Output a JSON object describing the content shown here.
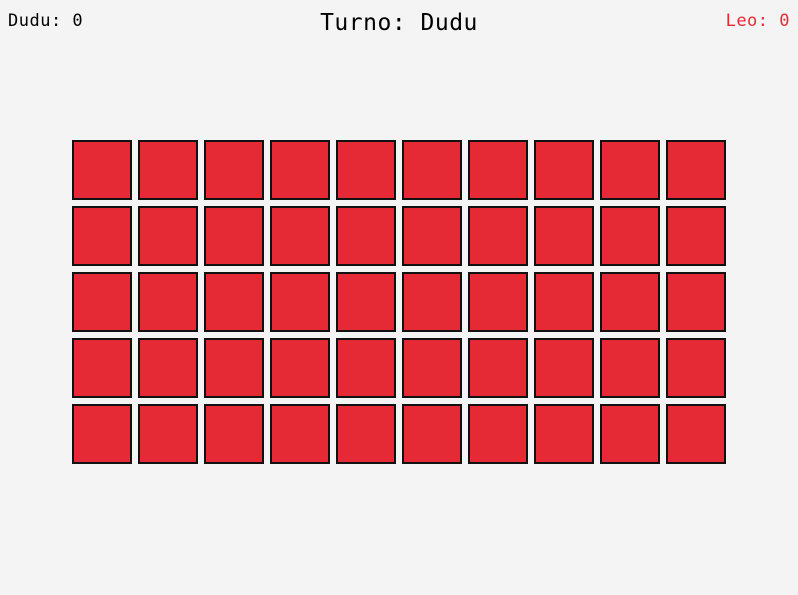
{
  "players": {
    "left": {
      "label": "Dudu: 0",
      "color": "#000000"
    },
    "right": {
      "label": "Leo: 0",
      "color": "#e52a36"
    }
  },
  "turn": {
    "label": "Turno: Dudu"
  },
  "board": {
    "rows": 5,
    "columns": 10,
    "card_color": "#e52a36",
    "card_border_color": "#111111",
    "background_color": "#f4f4f4"
  }
}
